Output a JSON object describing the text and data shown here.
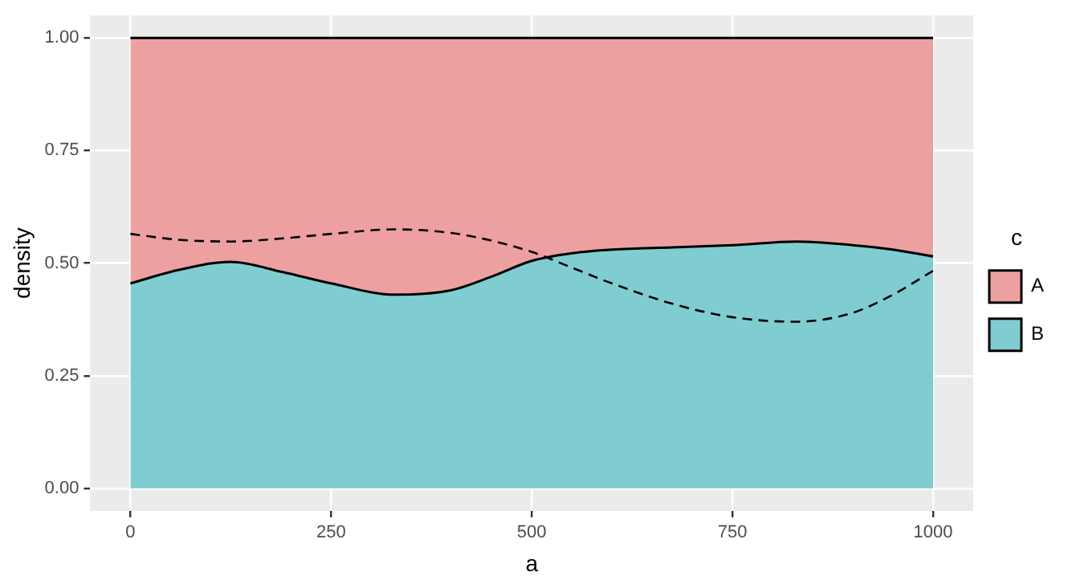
{
  "chart_data": {
    "type": "area",
    "stacked": true,
    "xlabel": "a",
    "ylabel": "density",
    "legend_title": "c",
    "legend": "right",
    "grid": true,
    "x": [
      0,
      60,
      125,
      190,
      250,
      330,
      400,
      450,
      500,
      550,
      600,
      675,
      750,
      830,
      900,
      950,
      1000
    ],
    "xlim": [
      -50,
      1050
    ],
    "xticks": [
      0,
      250,
      500,
      750,
      1000
    ],
    "ylim": [
      -0.05,
      1.05
    ],
    "yticks": [
      {
        "value": 0,
        "label": "0.00"
      },
      {
        "value": 0.25,
        "label": "0.25"
      },
      {
        "value": 0.5,
        "label": "0.50"
      },
      {
        "value": 0.75,
        "label": "0.75"
      },
      {
        "value": 1,
        "label": "1.00"
      }
    ],
    "series": [
      {
        "name": "B",
        "color": "#7fcdd0",
        "values": [
          0.455,
          0.485,
          0.503,
          0.48,
          0.455,
          0.43,
          0.44,
          0.47,
          0.505,
          0.522,
          0.53,
          0.535,
          0.54,
          0.548,
          0.54,
          0.53,
          0.515
        ]
      },
      {
        "name": "A",
        "color": "#eca1a0",
        "values": [
          0.545,
          0.515,
          0.497,
          0.52,
          0.545,
          0.57,
          0.56,
          0.53,
          0.495,
          0.478,
          0.47,
          0.465,
          0.46,
          0.452,
          0.46,
          0.47,
          0.485
        ]
      },
      {
        "type": "line",
        "color": "#000000",
        "line_style": "dashed",
        "values": [
          0.565,
          0.552,
          0.548,
          0.555,
          0.565,
          0.575,
          0.567,
          0.55,
          0.525,
          0.49,
          0.455,
          0.41,
          0.38,
          0.37,
          0.39,
          0.43,
          0.483
        ]
      }
    ]
  }
}
